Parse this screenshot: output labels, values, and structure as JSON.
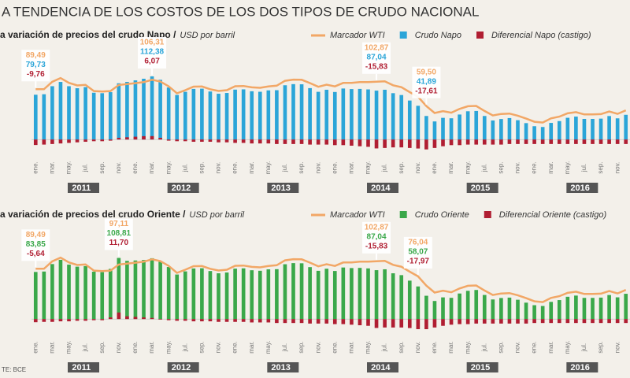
{
  "title": "A TENDENCIA DE LOS COSTOS DE LOS DOS TIPOS DE CRUDO NACIONAL",
  "source": "TE: BCE",
  "chart_data": [
    {
      "type": "bar",
      "title": "a variación de precios del crudo Napo /",
      "unit": "USD por barril",
      "legend": "top-right",
      "ylim": [
        -25,
        125
      ],
      "categories": [
        "ene.",
        null,
        "mar.",
        null,
        "may.",
        null,
        "jul.",
        null,
        "sep.",
        null,
        "nov.",
        null,
        "ene.",
        null,
        "mar.",
        null,
        "may.",
        null,
        "jul.",
        null,
        "sep.",
        null,
        "nov.",
        null,
        "ene.",
        null,
        "mar.",
        null,
        "may.",
        null,
        "jul.",
        null,
        "sep.",
        null,
        "nov.",
        null,
        "ene.",
        null,
        "mar.",
        null,
        "may.",
        null,
        "jul.",
        null,
        "sep.",
        null,
        "nov.",
        null,
        "ene.",
        null,
        "mar.",
        null,
        "may.",
        null,
        "jul.",
        null,
        "sep.",
        null,
        "nov.",
        null,
        "ene.",
        null,
        "mar.",
        null,
        "may.",
        null,
        "jul.",
        null,
        "sep.",
        null,
        "nov.",
        null
      ],
      "years": [
        "2011",
        "2012",
        "2013",
        "2014",
        "2015",
        "2016"
      ],
      "series": [
        {
          "name": "Marcador WTI",
          "kind": "line",
          "color": "#f2a766",
          "values": [
            89.49,
            89.6,
            102.9,
            109.5,
            100.9,
            96.3,
            97.3,
            86.3,
            85.5,
            86.3,
            97.11,
            98.6,
            100.3,
            102.2,
            106.31,
            103.3,
            94.7,
            82.3,
            87.9,
            94.1,
            94.5,
            89.5,
            86.5,
            87.9,
            94.8,
            95.3,
            92.9,
            92.0,
            94.5,
            95.8,
            104.6,
            106.6,
            106.3,
            100.5,
            93.9,
            97.6,
            94.6,
            100.8,
            100.8,
            102.1,
            102.2,
            102.87,
            103.6,
            96.5,
            93.2,
            84.4,
            76.04,
            59.5,
            47.2,
            50.6,
            47.8,
            54.5,
            59.3,
            59.8,
            50.9,
            42.9,
            45.5,
            46.2,
            42.4,
            37.2,
            31.7,
            30.3,
            37.6,
            40.8,
            46.7,
            48.8,
            44.7,
            44.7,
            45.2,
            49.8,
            45.7,
            52.0
          ],
          "value_labels": [
            "89,49",
            null,
            null,
            null,
            null,
            null,
            null,
            null,
            null,
            null,
            null,
            null,
            null,
            null,
            "106,31",
            null,
            null,
            null,
            null,
            null,
            null,
            null,
            null,
            null,
            null,
            null,
            null,
            null,
            null,
            null,
            null,
            null,
            null,
            null,
            null,
            null,
            null,
            null,
            null,
            null,
            null,
            "102,87",
            null,
            null,
            null,
            null,
            null,
            "59,50",
            null,
            null,
            null,
            null,
            null,
            null,
            null,
            null,
            null,
            null,
            null,
            null,
            null,
            null,
            null,
            null,
            null,
            null,
            null,
            null,
            null,
            null,
            null,
            null
          ]
        },
        {
          "name": "Crudo Napo",
          "kind": "bar",
          "color": "#2ba5d8",
          "values": [
            79.73,
            80.6,
            94.9,
            102.5,
            94.9,
            91.3,
            93.3,
            83.3,
            82.5,
            84.3,
            100.11,
            102.6,
            105.3,
            108.2,
            112.38,
            106.3,
            92.7,
            79.3,
            84.9,
            90.1,
            90.5,
            85.5,
            81.5,
            82.9,
            88.8,
            89.3,
            85.9,
            85.0,
            87.5,
            87.8,
            96.6,
            98.6,
            98.3,
            91.5,
            84.9,
            88.6,
            84.6,
            90.8,
            89.8,
            90.1,
            89.2,
            87.04,
            88.6,
            82.5,
            79.2,
            69.4,
            60.04,
            41.89,
            32.2,
            38.6,
            37.8,
            44.5,
            50.3,
            50.8,
            41.9,
            33.9,
            36.5,
            38.2,
            34.4,
            29.2,
            23.7,
            22.3,
            29.6,
            32.8,
            38.7,
            40.8,
            36.7,
            36.7,
            37.2,
            41.8,
            37.7,
            44.0
          ],
          "value_labels": [
            "79,73",
            null,
            null,
            null,
            null,
            null,
            null,
            null,
            null,
            null,
            null,
            null,
            null,
            null,
            "112,38",
            null,
            null,
            null,
            null,
            null,
            null,
            null,
            null,
            null,
            null,
            null,
            null,
            null,
            null,
            null,
            null,
            null,
            null,
            null,
            null,
            null,
            null,
            null,
            null,
            null,
            null,
            "87,04",
            null,
            null,
            null,
            null,
            null,
            "41,89",
            null,
            null,
            null,
            null,
            null,
            null,
            null,
            null,
            null,
            null,
            null,
            null,
            null,
            null,
            null,
            null,
            null,
            null,
            null,
            null,
            null,
            null,
            null,
            null
          ]
        },
        {
          "name": "Diferencial Napo (castigo)",
          "kind": "bar",
          "color": "#b01e32",
          "values": [
            -9.76,
            -9,
            -8,
            -7,
            -6,
            -5,
            -4,
            -3,
            -3,
            -2,
            3,
            4,
            5,
            6,
            6.07,
            3,
            -2,
            -3,
            -3,
            -4,
            -4,
            -4,
            -5,
            -5,
            -6,
            -6,
            -7,
            -7,
            -7,
            -8,
            -8,
            -8,
            -8,
            -9,
            -9,
            -9,
            -10,
            -10,
            -11,
            -12,
            -13,
            -15.83,
            -15,
            -14,
            -14,
            -15,
            -16,
            -17.61,
            -15,
            -12,
            -10,
            -10,
            -9,
            -9,
            -9,
            -9,
            -9,
            -8,
            -8,
            -8,
            -8,
            -8,
            -8,
            -8,
            -8,
            -8,
            -8,
            -8,
            -8,
            -8,
            -8,
            -8
          ],
          "value_labels": [
            "-9,76",
            null,
            null,
            null,
            null,
            null,
            null,
            null,
            null,
            null,
            null,
            null,
            null,
            null,
            "6,07",
            null,
            null,
            null,
            null,
            null,
            null,
            null,
            null,
            null,
            null,
            null,
            null,
            null,
            null,
            null,
            null,
            null,
            null,
            null,
            null,
            null,
            null,
            null,
            null,
            null,
            null,
            "-15,83",
            null,
            null,
            null,
            null,
            null,
            "-17,61",
            null,
            null,
            null,
            null,
            null,
            null,
            null,
            null,
            null,
            null,
            null,
            null,
            null,
            null,
            null,
            null,
            null,
            null,
            null,
            null,
            null,
            null,
            null,
            null
          ]
        }
      ]
    },
    {
      "type": "bar",
      "title": "a variación de precios del crudo Oriente /",
      "unit": "USD por barril",
      "legend": "top-right",
      "ylim": [
        -25,
        125
      ],
      "categories": [
        "ene.",
        null,
        "mar.",
        null,
        "may.",
        null,
        "jul.",
        null,
        "sep.",
        null,
        "nov.",
        null,
        "ene.",
        null,
        "mar.",
        null,
        "may.",
        null,
        "jul.",
        null,
        "sep.",
        null,
        "nov.",
        null,
        "ene.",
        null,
        "mar.",
        null,
        "may.",
        null,
        "jul.",
        null,
        "sep.",
        null,
        "nov.",
        null,
        "ene.",
        null,
        "mar.",
        null,
        "may.",
        null,
        "jul.",
        null,
        "sep.",
        null,
        "nov.",
        null,
        "ene.",
        null,
        "mar.",
        null,
        "may.",
        null,
        "jul.",
        null,
        "sep.",
        null,
        "nov.",
        null,
        "ene.",
        null,
        "mar.",
        null,
        "may.",
        null,
        "jul.",
        null,
        "sep.",
        null,
        "nov.",
        null
      ],
      "years": [
        "2011",
        "2012",
        "2013",
        "2014",
        "2015",
        "2016"
      ],
      "series": [
        {
          "name": "Marcador WTI",
          "kind": "line",
          "color": "#f2a766",
          "values": [
            89.49,
            89.6,
            102.9,
            109.5,
            100.9,
            96.3,
            97.3,
            86.3,
            85.5,
            86.3,
            97.11,
            98.6,
            100.3,
            102.2,
            106.31,
            103.3,
            94.7,
            82.3,
            87.9,
            94.1,
            94.5,
            89.5,
            86.5,
            87.9,
            94.8,
            95.3,
            92.9,
            92.0,
            94.5,
            95.8,
            104.6,
            106.6,
            106.3,
            100.5,
            93.9,
            97.6,
            94.6,
            100.8,
            100.8,
            102.1,
            102.2,
            102.87,
            103.6,
            96.5,
            93.2,
            84.4,
            76.04,
            59.5,
            47.2,
            50.6,
            47.8,
            54.5,
            59.3,
            59.8,
            50.9,
            42.9,
            45.5,
            46.2,
            42.4,
            37.2,
            31.7,
            30.3,
            37.6,
            40.8,
            46.7,
            48.8,
            44.7,
            44.7,
            45.2,
            49.8,
            45.7,
            52.0
          ],
          "value_labels": [
            "89,49",
            null,
            null,
            null,
            null,
            null,
            null,
            null,
            null,
            null,
            "97,11",
            null,
            null,
            null,
            null,
            null,
            null,
            null,
            null,
            null,
            null,
            null,
            null,
            null,
            null,
            null,
            null,
            null,
            null,
            null,
            null,
            null,
            null,
            null,
            null,
            null,
            null,
            null,
            null,
            null,
            null,
            "102,87",
            null,
            null,
            null,
            null,
            "76,04",
            null,
            null,
            null,
            null,
            null,
            null,
            null,
            null,
            null,
            null,
            null,
            null,
            null,
            null,
            null,
            null,
            null,
            null,
            null,
            null,
            null,
            null,
            null,
            null,
            null
          ]
        },
        {
          "name": "Crudo Oriente",
          "kind": "bar",
          "color": "#3aa84a",
          "values": [
            83.85,
            84.6,
            97.9,
            105.5,
            96.9,
            93.3,
            94.3,
            84.3,
            83.5,
            89.3,
            108.81,
            103.6,
            104.3,
            105.2,
            108.31,
            102.3,
            92.7,
            79.3,
            84.9,
            90.1,
            90.5,
            85.5,
            81.5,
            82.9,
            89.8,
            90.3,
            86.9,
            86.0,
            88.5,
            88.8,
            97.6,
            99.6,
            99.3,
            92.5,
            85.9,
            89.6,
            85.6,
            91.8,
            90.8,
            91.1,
            90.2,
            87.04,
            88.6,
            81.5,
            78.2,
            68.4,
            58.07,
            41.5,
            32.2,
            38.6,
            37.8,
            45.5,
            50.3,
            51.8,
            42.9,
            34.9,
            37.5,
            38.2,
            34.4,
            29.2,
            24.7,
            23.3,
            30.6,
            33.8,
            39.7,
            41.8,
            37.7,
            37.7,
            38.2,
            42.8,
            38.7,
            45.0
          ],
          "value_labels": [
            "83,85",
            null,
            null,
            null,
            null,
            null,
            null,
            null,
            null,
            null,
            "108,81",
            null,
            null,
            null,
            null,
            null,
            null,
            null,
            null,
            null,
            null,
            null,
            null,
            null,
            null,
            null,
            null,
            null,
            null,
            null,
            null,
            null,
            null,
            null,
            null,
            null,
            null,
            null,
            null,
            null,
            null,
            "87,04",
            null,
            null,
            null,
            null,
            "58,07",
            null,
            null,
            null,
            null,
            null,
            null,
            null,
            null,
            null,
            null,
            null,
            null,
            null,
            null,
            null,
            null,
            null,
            null,
            null,
            null,
            null,
            null,
            null,
            null,
            null
          ]
        },
        {
          "name": "Diferencial Oriente (castigo)",
          "kind": "bar",
          "color": "#b01e32",
          "values": [
            -5.64,
            -5,
            -5,
            -4,
            -4,
            -3,
            -3,
            -2,
            -2,
            3,
            11.7,
            5,
            4,
            3,
            2,
            -1,
            -2,
            -3,
            -3,
            -4,
            -4,
            -4,
            -5,
            -5,
            -5,
            -5,
            -6,
            -6,
            -6,
            -7,
            -7,
            -7,
            -7,
            -8,
            -8,
            -8,
            -9,
            -9,
            -10,
            -11,
            -12,
            -15.83,
            -15,
            -15,
            -15,
            -16,
            -17.97,
            -18,
            -15,
            -12,
            -10,
            -9,
            -9,
            -8,
            -8,
            -8,
            -8,
            -8,
            -8,
            -8,
            -7,
            -7,
            -7,
            -7,
            -7,
            -7,
            -7,
            -7,
            -7,
            -7,
            -7,
            -7
          ],
          "value_labels": [
            "-5,64",
            null,
            null,
            null,
            null,
            null,
            null,
            null,
            null,
            null,
            "11,70",
            null,
            null,
            null,
            null,
            null,
            null,
            null,
            null,
            null,
            null,
            null,
            null,
            null,
            null,
            null,
            null,
            null,
            null,
            null,
            null,
            null,
            null,
            null,
            null,
            null,
            null,
            null,
            null,
            null,
            null,
            "-15,83",
            null,
            null,
            null,
            null,
            "-17,97",
            null,
            null,
            null,
            null,
            null,
            null,
            null,
            null,
            null,
            null,
            null,
            null,
            null,
            null,
            null,
            null,
            null,
            null,
            null,
            null,
            null,
            null,
            null,
            null,
            null
          ]
        }
      ]
    }
  ]
}
